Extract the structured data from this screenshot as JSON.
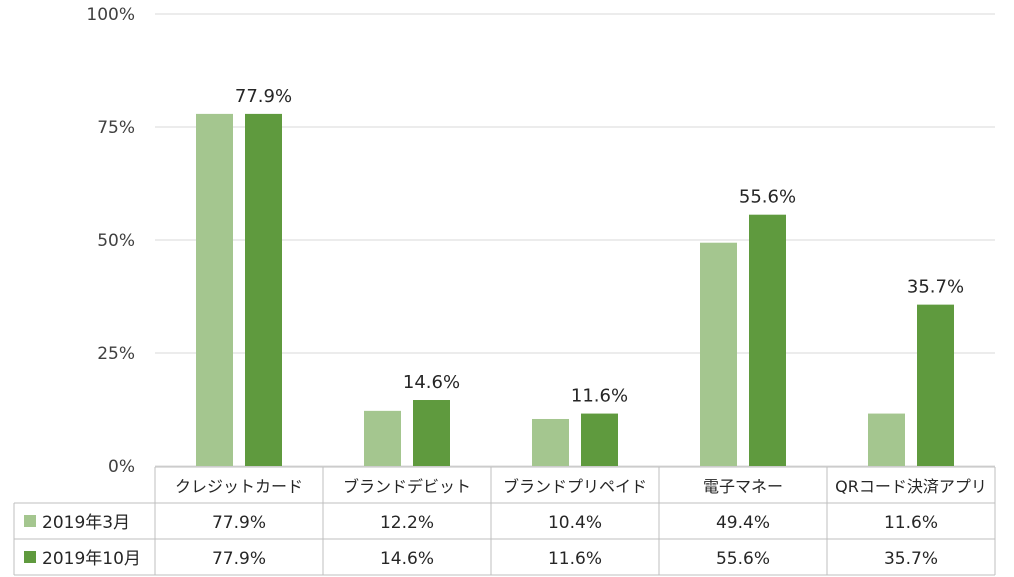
{
  "chart_data": {
    "type": "bar",
    "title": "",
    "xlabel": "",
    "ylabel": "",
    "ylim": [
      0,
      100
    ],
    "yticks": [
      "0%",
      "25%",
      "50%",
      "75%",
      "100%"
    ],
    "ytick_values": [
      0,
      25,
      50,
      75,
      100
    ],
    "grid": true,
    "legend_placement": "table-left",
    "categories": [
      "クレジットカード",
      "ブランドデビット",
      "ブランドプリペイド",
      "電子マネー",
      "QRコード決済アプリ"
    ],
    "series": [
      {
        "name": "2019年3月",
        "color": "#a4c68f",
        "values": [
          77.9,
          12.2,
          10.4,
          49.4,
          11.6
        ],
        "table_labels": [
          "77.9%",
          "12.2%",
          "10.4%",
          "49.4%",
          "11.6%"
        ],
        "bar_labels": [
          "",
          "",
          "",
          "",
          ""
        ]
      },
      {
        "name": "2019年10月",
        "color": "#5f9a3e",
        "values": [
          77.9,
          14.6,
          11.6,
          55.6,
          35.7
        ],
        "table_labels": [
          "77.9%",
          "14.6%",
          "11.6%",
          "55.6%",
          "35.7%"
        ],
        "bar_labels": [
          "77.9%",
          "14.6%",
          "11.6%",
          "55.6%",
          "35.7%"
        ]
      }
    ]
  }
}
